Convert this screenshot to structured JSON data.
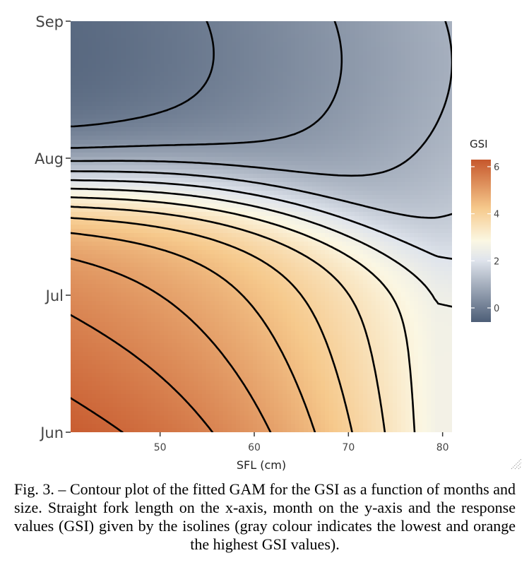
{
  "chart_data": {
    "type": "heatmap",
    "subtype": "contour",
    "xlabel": "SFL (cm)",
    "x_ticks": [
      50,
      60,
      70,
      80
    ],
    "xlim": [
      40.5,
      81
    ],
    "y_ticks": [
      {
        "label": "Jun",
        "value": 0
      },
      {
        "label": "Jul",
        "value": 1
      },
      {
        "label": "Aug",
        "value": 2
      },
      {
        "label": "Sep",
        "value": 3
      }
    ],
    "ylim": [
      0,
      3
    ],
    "legend": {
      "title": "GSI",
      "ticks": [
        0,
        2,
        4,
        6
      ],
      "range": [
        -0.6,
        6.3
      ],
      "placement": "right"
    },
    "colorscale": {
      "low": "#4d5e77",
      "mid": "#f2f1e6",
      "high": "#c8582c"
    },
    "contour_levels": [
      -0.5,
      0,
      0.5,
      1,
      1.5,
      2,
      2.5,
      3,
      3.5,
      4,
      4.5,
      5,
      5.5,
      6
    ],
    "grid": false
  },
  "caption": "Fig. 3. – Contour plot of the fitted GAM for the GSI as a function of months and size. Straight fork length on the x-axis, month on the y-axis and the response values (GSI) given by the isolines (gray colour indicates the lowest and orange the highest GSI values)."
}
